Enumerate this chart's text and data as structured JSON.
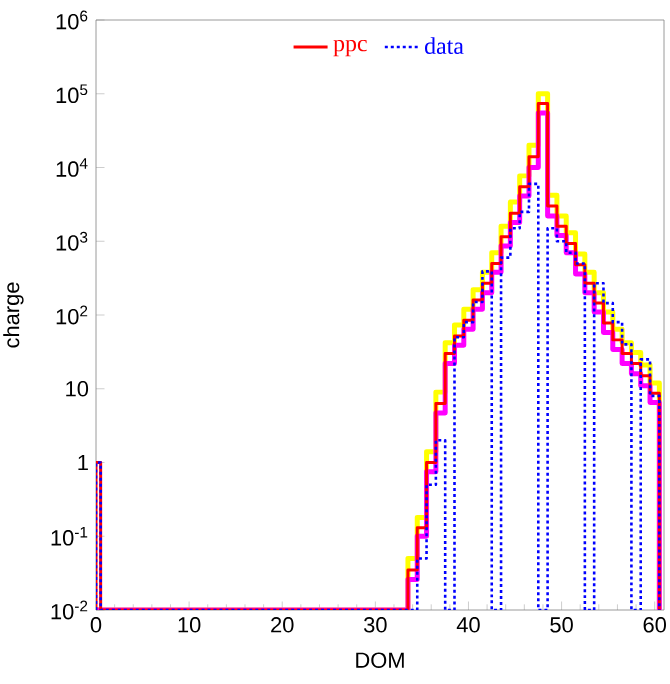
{
  "chart_data": {
    "type": "histogram",
    "xlabel": "DOM",
    "ylabel": "charge",
    "bins": [
      0,
      0.5,
      1.5,
      2.5,
      3.5,
      4.5,
      5.5,
      6.5,
      7.5,
      8.5,
      9.5,
      10.5,
      11.5,
      12.5,
      13.5,
      14.5,
      15.5,
      16.5,
      17.5,
      18.5,
      19.5,
      20.5,
      21.5,
      22.5,
      23.5,
      24.5,
      25.5,
      26.5,
      27.5,
      28.5,
      29.5,
      30.5,
      31.5,
      32.5,
      33.5,
      34.5,
      35.5,
      36.5,
      37.5,
      38.5,
      39.5,
      40.5,
      41.5,
      42.5,
      43.5,
      44.5,
      45.5,
      46.5,
      47.5,
      48.5,
      49.5,
      50.5,
      51.5,
      52.5,
      53.5,
      54.5,
      55.5,
      56.5,
      57.5,
      58.5,
      59.5,
      60.5
    ],
    "series": [
      {
        "name": "ppc",
        "color": "#ff0000",
        "line_style": "solid",
        "values": [
          1,
          null,
          null,
          null,
          null,
          null,
          null,
          null,
          null,
          null,
          null,
          null,
          null,
          null,
          null,
          null,
          null,
          null,
          null,
          null,
          null,
          null,
          null,
          null,
          null,
          null,
          null,
          null,
          null,
          null,
          null,
          null,
          null,
          null,
          0.035,
          0.13,
          1.0,
          6.3,
          30,
          52,
          85,
          160,
          270,
          500,
          1150,
          2400,
          5500,
          14000,
          74000,
          3000,
          1600,
          930,
          480,
          270,
          145,
          78,
          46,
          30,
          22,
          15,
          8.7
        ]
      },
      {
        "name": "data",
        "color": "#0000ff",
        "line_style": "dotted",
        "values": [
          1,
          null,
          null,
          null,
          null,
          null,
          null,
          null,
          null,
          null,
          null,
          null,
          null,
          null,
          null,
          null,
          null,
          null,
          null,
          null,
          null,
          null,
          null,
          null,
          null,
          null,
          null,
          null,
          null,
          null,
          null,
          null,
          null,
          null,
          null,
          0.05,
          0.5,
          2,
          null,
          50,
          80,
          150,
          390,
          null,
          600,
          1500,
          2500,
          6000,
          null,
          1500,
          1000,
          700,
          500,
          null,
          270,
          145,
          80,
          40,
          null,
          25,
          8
        ]
      },
      {
        "color": "#ffff00",
        "line_style": "solid",
        "values": [
          null,
          null,
          null,
          null,
          null,
          null,
          null,
          null,
          null,
          null,
          null,
          null,
          null,
          null,
          null,
          null,
          null,
          null,
          null,
          null,
          null,
          null,
          null,
          null,
          null,
          null,
          null,
          null,
          null,
          null,
          null,
          null,
          null,
          null,
          0.05,
          0.18,
          1.4,
          9,
          42,
          73,
          120,
          220,
          380,
          700,
          1600,
          3400,
          7700,
          20000,
          100000,
          4200,
          2200,
          1300,
          670,
          380,
          200,
          110,
          64,
          42,
          31,
          21,
          12
        ]
      },
      {
        "color": "#ff00ff",
        "line_style": "solid",
        "values": [
          null,
          null,
          null,
          null,
          null,
          null,
          null,
          null,
          null,
          null,
          null,
          null,
          null,
          null,
          null,
          null,
          null,
          null,
          null,
          null,
          null,
          null,
          null,
          null,
          null,
          null,
          null,
          null,
          null,
          null,
          null,
          null,
          null,
          null,
          0.026,
          0.1,
          0.75,
          4.7,
          22,
          39,
          64,
          120,
          200,
          380,
          860,
          1800,
          4100,
          10000,
          55000,
          2200,
          1200,
          700,
          360,
          200,
          110,
          58,
          34,
          22,
          16,
          11,
          6.5
        ]
      }
    ],
    "xlim": [
      0,
      61
    ],
    "xticks": [
      0,
      10,
      20,
      30,
      40,
      50,
      60
    ],
    "ylim": [
      0.01,
      1000000
    ],
    "log": "y",
    "yticks": [
      {
        "value": 0.01,
        "label": "10$^{-2}$"
      },
      {
        "value": 0.1,
        "label": "10$^{-1}$"
      },
      1,
      10,
      {
        "value": 100,
        "label": "10$^{2}$"
      },
      {
        "value": 1000,
        "label": "10$^{3}$"
      },
      {
        "value": 10000,
        "label": "10$^{4}$"
      },
      {
        "value": 100000,
        "label": "10$^{5}$"
      },
      {
        "value": 1000000,
        "label": "10$^{6}$"
      }
    ],
    "legend": "top",
    "grid": false,
    "marker": "none"
  }
}
